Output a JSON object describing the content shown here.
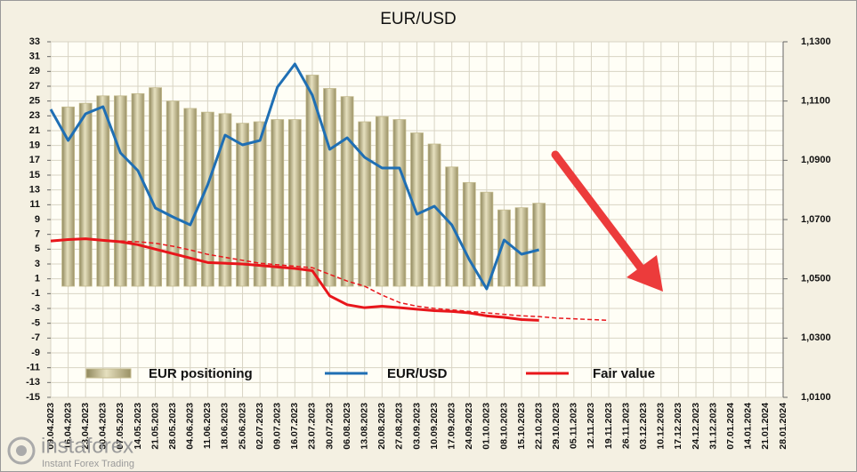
{
  "chart_data": {
    "type": "combo",
    "title": "EUR/USD",
    "categories": [
      "09.04.2023",
      "16.04.2023",
      "23.04.2023",
      "30.04.2023",
      "07.05.2023",
      "14.05.2023",
      "21.05.2023",
      "28.05.2023",
      "04.06.2023",
      "11.06.2023",
      "18.06.2023",
      "25.06.2023",
      "02.07.2023",
      "09.07.2023",
      "16.07.2023",
      "23.07.2023",
      "30.07.2023",
      "06.08.2023",
      "13.08.2023",
      "20.08.2023",
      "27.08.2023",
      "03.09.2023",
      "10.09.2023",
      "17.09.2023",
      "24.09.2023",
      "01.10.2023",
      "08.10.2023",
      "15.10.2023",
      "22.10.2023",
      "29.10.2023",
      "05.11.2023",
      "12.11.2023",
      "19.11.2023",
      "26.11.2023",
      "03.12.2023",
      "10.12.2023",
      "17.12.2023",
      "24.12.2023",
      "31.12.2023",
      "07.01.2024",
      "14.01.2024",
      "21.01.2024",
      "28.01.2024"
    ],
    "series": [
      {
        "name": "EUR positioning",
        "type": "bar",
        "color": "#c4bb8e",
        "values": [
          null,
          24.2,
          24.7,
          25.7,
          25.7,
          26,
          26.8,
          25,
          24,
          23.5,
          23.3,
          22,
          22.2,
          22.5,
          22.5,
          28.5,
          26.7,
          25.6,
          22.2,
          22.9,
          22.5,
          20.7,
          19.2,
          16.1,
          14,
          12.7,
          10.3,
          10.6,
          11.2,
          null,
          null,
          null,
          null,
          null,
          null,
          null,
          null,
          null,
          null,
          null,
          null,
          null,
          null
        ]
      },
      {
        "name": "EUR/USD",
        "type": "line",
        "axis": "y2",
        "color": "#1f6fb4",
        "values": [
          1.1072,
          1.0967,
          1.1057,
          1.1081,
          1.0925,
          1.0865,
          1.0739,
          1.0709,
          1.0682,
          1.0817,
          1.0985,
          1.0952,
          1.0967,
          1.1147,
          1.1225,
          1.112,
          1.0937,
          1.0976,
          1.091,
          1.0874,
          1.0874,
          1.0718,
          1.0745,
          1.0682,
          1.0565,
          1.0466,
          1.0631,
          1.0583,
          1.0598,
          null,
          null,
          null,
          null,
          null,
          null,
          null,
          null,
          null,
          null,
          null,
          null,
          null,
          null
        ]
      },
      {
        "name": "Fair value",
        "type": "line",
        "color": "#e8161b",
        "values": [
          6.1,
          6.3,
          6.4,
          6.2,
          6.0,
          5.6,
          5.0,
          4.4,
          3.8,
          3.2,
          3.1,
          3.0,
          2.8,
          2.6,
          2.4,
          2.1,
          -1.3,
          -2.5,
          -2.9,
          -2.7,
          -2.9,
          -3.1,
          -3.3,
          -3.4,
          -3.6,
          -4.0,
          -4.2,
          -4.5,
          -4.6,
          null,
          null,
          null,
          null,
          null,
          null,
          null,
          null,
          null,
          null,
          null,
          null,
          null,
          null
        ]
      },
      {
        "type": "line",
        "dashed": true,
        "color": "#e8161b",
        "values": [
          null,
          null,
          null,
          null,
          6.1,
          6.0,
          5.8,
          5.4,
          4.9,
          4.3,
          3.9,
          3.5,
          3.1,
          2.9,
          2.7,
          2.5,
          1.6,
          0.7,
          0,
          -1.2,
          -2.2,
          -2.7,
          -3.0,
          -3.2,
          -3.4,
          -3.6,
          -3.8,
          -4.0,
          -4.1,
          -4.3,
          -4.4,
          -4.5,
          -4.6,
          null,
          null,
          null,
          null,
          null,
          null,
          null,
          null,
          null,
          null
        ]
      }
    ],
    "ylim": [
      -15,
      33
    ],
    "yticks": [
      33,
      31,
      29,
      27,
      25,
      23,
      21,
      19,
      17,
      15,
      13,
      11,
      9,
      7,
      5,
      3,
      1,
      -1,
      -3,
      -5,
      -7,
      -9,
      -11,
      -13,
      -15
    ],
    "y2lim": [
      1.01,
      1.13
    ],
    "y2ticks": [
      {
        "value": 1.13,
        "label": "1,1300"
      },
      {
        "value": 1.11,
        "label": "1,1100"
      },
      {
        "value": 1.09,
        "label": "1,0900"
      },
      {
        "value": 1.07,
        "label": "1,0700"
      },
      {
        "value": 1.05,
        "label": "1,0500"
      },
      {
        "value": 1.03,
        "label": "1,0300"
      },
      {
        "value": 1.01,
        "label": "1,0100"
      }
    ],
    "grid": true,
    "legend": "bottom"
  },
  "watermark": {
    "brand": "instaforex",
    "tagline": "Instant Forex Trading"
  }
}
